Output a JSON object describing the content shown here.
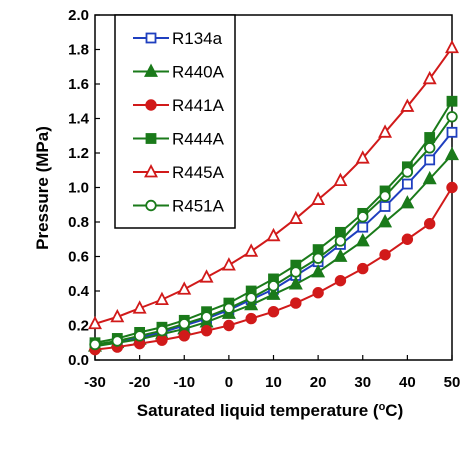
{
  "chart_data": {
    "type": "line",
    "title": "",
    "xlabel": "Saturated  liquid temperature (",
    "xlabel_sup": "o",
    "xlabel_suffix": "C)",
    "ylabel": "Pressure (MPa)",
    "xlim": [
      -30,
      50
    ],
    "ylim": [
      0.0,
      2.0
    ],
    "x_ticks": [
      "-30",
      "-20",
      "-10",
      "0",
      "10",
      "20",
      "30",
      "40",
      "50"
    ],
    "y_ticks": [
      "0.0",
      "0.2",
      "0.4",
      "0.6",
      "0.8",
      "1.0",
      "1.2",
      "1.4",
      "1.6",
      "1.8",
      "2.0"
    ],
    "grid": false,
    "legend_position": "top-left",
    "x": [
      -30,
      -25,
      -20,
      -15,
      -10,
      -5,
      0,
      5,
      10,
      15,
      20,
      25,
      30,
      35,
      40,
      45,
      50
    ],
    "series": [
      {
        "name": "R134a",
        "color": "#1f3fbf",
        "marker": "square-open",
        "values": [
          0.085,
          0.105,
          0.13,
          0.16,
          0.2,
          0.24,
          0.29,
          0.35,
          0.41,
          0.49,
          0.57,
          0.67,
          0.77,
          0.89,
          1.02,
          1.16,
          1.32
        ]
      },
      {
        "name": "R440A",
        "color": "#1a7a1a",
        "marker": "triangle-filled",
        "values": [
          0.08,
          0.1,
          0.12,
          0.15,
          0.18,
          0.22,
          0.27,
          0.32,
          0.38,
          0.44,
          0.51,
          0.6,
          0.69,
          0.8,
          0.91,
          1.05,
          1.19
        ]
      },
      {
        "name": "R441A",
        "color": "#d11a1a",
        "marker": "circle-filled",
        "values": [
          0.06,
          0.075,
          0.095,
          0.115,
          0.14,
          0.17,
          0.2,
          0.24,
          0.28,
          0.33,
          0.39,
          0.46,
          0.53,
          0.61,
          0.7,
          0.79,
          1.0
        ]
      },
      {
        "name": "R444A",
        "color": "#1a7a1a",
        "marker": "square-filled",
        "values": [
          0.1,
          0.125,
          0.16,
          0.19,
          0.23,
          0.28,
          0.33,
          0.4,
          0.47,
          0.55,
          0.64,
          0.74,
          0.85,
          0.98,
          1.12,
          1.29,
          1.5
        ]
      },
      {
        "name": "R445A",
        "color": "#d11a1a",
        "marker": "triangle-open",
        "values": [
          0.21,
          0.25,
          0.3,
          0.35,
          0.41,
          0.48,
          0.55,
          0.63,
          0.72,
          0.82,
          0.93,
          1.04,
          1.17,
          1.32,
          1.47,
          1.63,
          1.81
        ]
      },
      {
        "name": "R451A",
        "color": "#1a7a1a",
        "marker": "circle-open",
        "values": [
          0.09,
          0.11,
          0.14,
          0.17,
          0.21,
          0.25,
          0.3,
          0.36,
          0.43,
          0.51,
          0.59,
          0.69,
          0.83,
          0.95,
          1.09,
          1.23,
          1.41
        ]
      }
    ]
  }
}
